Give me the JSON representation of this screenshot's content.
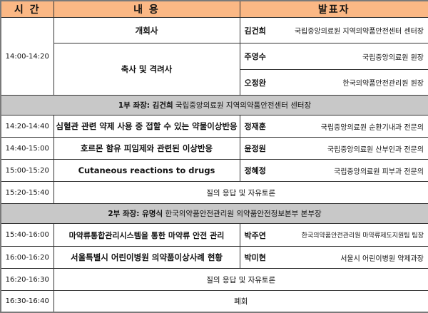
{
  "header": {
    "time": "시 간",
    "content": "내 용",
    "presenter": "발표자"
  },
  "opening": {
    "time": "14:00-14:20",
    "items": [
      {
        "content": "개회사",
        "presenters": [
          {
            "name": "김건희",
            "affiliation": "국립중앙의료원 지역의약품안전센터 센터장"
          }
        ]
      },
      {
        "content": "축사 및 격려사",
        "presenters": [
          {
            "name": "주영수",
            "affiliation": "국립중앙의료원 원장"
          },
          {
            "name": "오정완",
            "affiliation": "한국의약품안전관리원 원장"
          }
        ]
      }
    ]
  },
  "session1": {
    "chair_label": "1부 좌장: 김건희",
    "chair_affiliation": "국립중앙의료원 지역의약품안전센터 센터장",
    "rows": [
      {
        "time": "14:20-14:40",
        "content": "심혈관 관련 약제 사용 중 접할 수 있는 약물이상반응",
        "name": "정재훈",
        "affiliation": "국립중앙의료원 순환기내과 전문의"
      },
      {
        "time": "14:40-15:00",
        "content": "호르몬 함유 피임제와 관련된 이상반응",
        "name": "윤정원",
        "affiliation": "국립중앙의료원 산부인과 전문의"
      },
      {
        "time": "15:00-15:20",
        "content": "Cutaneous reactions to drugs",
        "name": "정혜정",
        "affiliation": "국립중앙의료원 피부과 전문의"
      }
    ],
    "qa": {
      "time": "15:20-15:40",
      "content": "질의 응답 및 자유토론"
    }
  },
  "session2": {
    "chair_label": "2부 좌장: 유명식",
    "chair_affiliation": "한국의약품안전관리원  의약품안전정보본부 본부장",
    "rows": [
      {
        "time": "15:40-16:00",
        "content": "마약류통합관리시스템을 통한 마약류 안전 관리",
        "name": "박주연",
        "affiliation": "한국의약품안전관리원 마약류제도지원팀 팀장"
      },
      {
        "time": "16:00-16:20",
        "content": "서울특별시 어린이병원 의약품이상사례 현황",
        "name": "박미현",
        "affiliation": "서울시 어린이병원 약제과장"
      }
    ],
    "qa": {
      "time": "16:20-16:30",
      "content": "질의 응답 및 자유토론"
    },
    "closing": {
      "time": "16:30-16:40",
      "content": "폐회"
    }
  }
}
